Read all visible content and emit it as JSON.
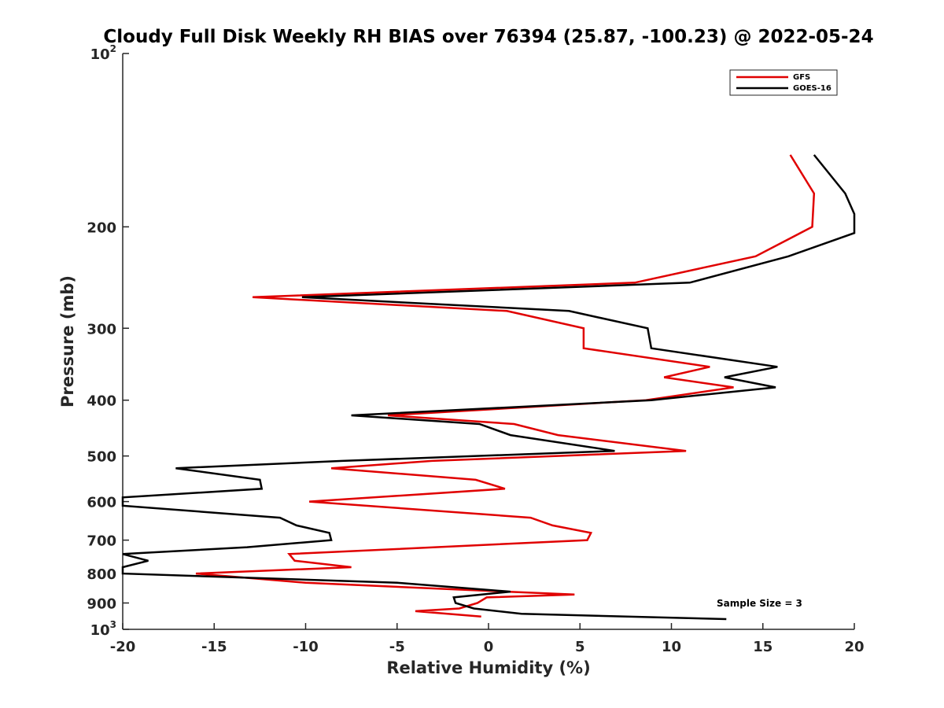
{
  "chart_data": {
    "type": "line",
    "title": "Cloudy Full Disk Weekly RH BIAS over 76394 (25.87, -100.23) @ 2022-05-24",
    "xlabel": "Relative Humidity (%)",
    "ylabel": "Pressure (mb)",
    "xlim": [
      -20,
      20
    ],
    "ylim": [
      100,
      1000
    ],
    "y_scale": "log",
    "y_reversed": true,
    "grid": false,
    "legend_position": "top-right",
    "x_ticks": [
      -20,
      -15,
      -10,
      -5,
      0,
      5,
      10,
      15,
      20
    ],
    "y_ticks": [
      {
        "value": 100,
        "label": "10",
        "sup": "2"
      },
      {
        "value": 200,
        "label": "200"
      },
      {
        "value": 300,
        "label": "300"
      },
      {
        "value": 400,
        "label": "400"
      },
      {
        "value": 500,
        "label": "500"
      },
      {
        "value": 600,
        "label": "600"
      },
      {
        "value": 700,
        "label": "700"
      },
      {
        "value": 800,
        "label": "800"
      },
      {
        "value": 900,
        "label": "900"
      },
      {
        "value": 1000,
        "label": "10",
        "sup": "3"
      }
    ],
    "annotation": "Sample Size = 3",
    "series": [
      {
        "name": "GFS",
        "color": "#e00000",
        "points": [
          [
            16.5,
            150
          ],
          [
            17.8,
            175
          ],
          [
            17.7,
            200
          ],
          [
            14.6,
            225
          ],
          [
            8.0,
            250
          ],
          [
            -12.9,
            265
          ],
          [
            1.0,
            280
          ],
          [
            5.2,
            300
          ],
          [
            5.2,
            325
          ],
          [
            12.1,
            350
          ],
          [
            9.6,
            365
          ],
          [
            13.4,
            380
          ],
          [
            8.6,
            400
          ],
          [
            -5.5,
            425
          ],
          [
            1.4,
            440
          ],
          [
            3.8,
            460
          ],
          [
            10.8,
            490
          ],
          [
            -3.1,
            510
          ],
          [
            -8.6,
            525
          ],
          [
            -0.7,
            550
          ],
          [
            0.9,
            570
          ],
          [
            -9.8,
            600
          ],
          [
            2.3,
            640
          ],
          [
            3.5,
            660
          ],
          [
            5.6,
            680
          ],
          [
            5.4,
            700
          ],
          [
            -10.9,
            740
          ],
          [
            -10.6,
            760
          ],
          [
            -7.5,
            780
          ],
          [
            -16.0,
            800
          ],
          [
            -10.0,
            830
          ],
          [
            1.0,
            860
          ],
          [
            4.7,
            870
          ],
          [
            -0.1,
            880
          ],
          [
            -0.6,
            900
          ],
          [
            -1.6,
            920
          ],
          [
            -4.0,
            930
          ],
          [
            -0.4,
            950
          ]
        ]
      },
      {
        "name": "GOES-16",
        "color": "#000000",
        "points": [
          [
            17.8,
            150
          ],
          [
            19.5,
            175
          ],
          [
            20.0,
            190
          ],
          [
            20.0,
            205
          ],
          [
            16.4,
            225
          ],
          [
            11.0,
            250
          ],
          [
            -10.2,
            265
          ],
          [
            4.4,
            280
          ],
          [
            8.7,
            300
          ],
          [
            8.9,
            325
          ],
          [
            15.8,
            350
          ],
          [
            12.9,
            365
          ],
          [
            15.7,
            380
          ],
          [
            8.9,
            400
          ],
          [
            -7.5,
            425
          ],
          [
            -0.5,
            440
          ],
          [
            1.2,
            460
          ],
          [
            6.9,
            490
          ],
          [
            -8.0,
            510
          ],
          [
            -17.1,
            525
          ],
          [
            -12.5,
            550
          ],
          [
            -12.4,
            570
          ],
          [
            -20.0,
            590
          ],
          [
            -20.0,
            610
          ],
          [
            -11.4,
            640
          ],
          [
            -10.5,
            660
          ],
          [
            -8.7,
            680
          ],
          [
            -8.6,
            700
          ],
          [
            -13.2,
            720
          ],
          [
            -20.0,
            740
          ],
          [
            -18.6,
            760
          ],
          [
            -20.0,
            780
          ],
          [
            -20.0,
            800
          ],
          [
            -5.0,
            830
          ],
          [
            1.2,
            860
          ],
          [
            -1.9,
            880
          ],
          [
            -1.8,
            900
          ],
          [
            -0.8,
            920
          ],
          [
            1.8,
            940
          ],
          [
            13.0,
            960
          ]
        ]
      }
    ]
  }
}
